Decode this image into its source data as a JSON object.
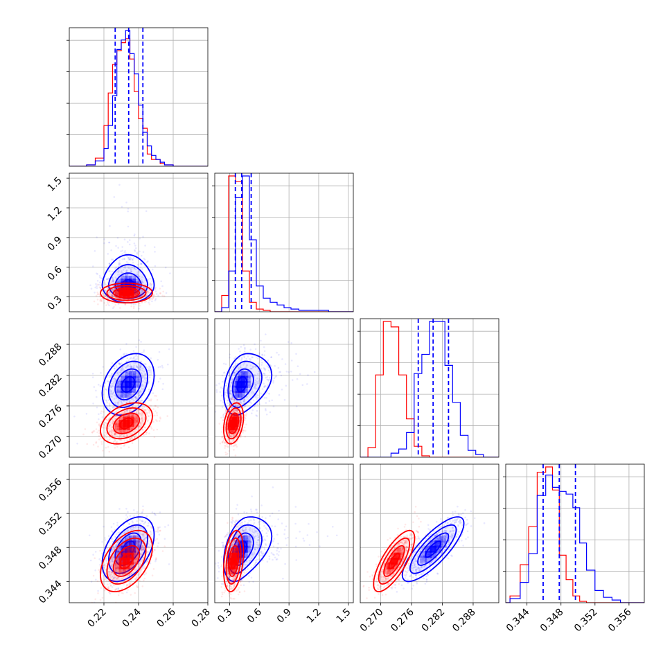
{
  "chart_data": {
    "type": "corner",
    "grid": true,
    "colors": {
      "blue": "#0000ff",
      "red": "#ff0000"
    },
    "parameters": [
      {
        "range": [
          0.2,
          0.28
        ],
        "ticks": [
          0.22,
          0.24,
          0.26,
          0.28
        ],
        "tick_labels": [
          "0.22",
          "0.24",
          "0.26",
          "0.28"
        ]
      },
      {
        "range": [
          0.15,
          1.55
        ],
        "ticks": [
          0.3,
          0.6,
          0.9,
          1.2,
          1.5
        ],
        "tick_labels": [
          "0.3",
          "0.6",
          "0.9",
          "1.2",
          "1.5"
        ]
      },
      {
        "range": [
          0.266,
          0.293
        ],
        "ticks": [
          0.27,
          0.276,
          0.282,
          0.288
        ],
        "tick_labels": [
          "0.270",
          "0.276",
          "0.282",
          "0.288"
        ]
      },
      {
        "range": [
          0.3415,
          0.3578
        ],
        "ticks": [
          0.344,
          0.348,
          0.352,
          0.356
        ],
        "tick_labels": [
          "0.344",
          "0.348",
          "0.352",
          "0.356"
        ]
      }
    ],
    "series": [
      {
        "color": "#0000ff",
        "mean": [
          0.234,
          0.42,
          0.2802,
          0.3478
        ],
        "sd": [
          0.0075,
          0.09,
          0.003,
          0.0019
        ],
        "skew_up": [
          0,
          1,
          0,
          0
        ],
        "quantiles": [
          [
            0.2265,
            0.2343,
            0.2425
          ],
          [
            0.358,
            0.422,
            0.518
          ],
          [
            0.2773,
            0.2802,
            0.2832
          ],
          [
            0.3459,
            0.3478,
            0.3497
          ]
        ]
      },
      {
        "color": "#ff0000",
        "mean": [
          0.233,
          0.34,
          0.2726,
          0.3464
        ],
        "sd": [
          0.0075,
          0.05,
          0.002,
          0.0018
        ],
        "skew_up": [
          0,
          0,
          0,
          0
        ],
        "quantiles": []
      }
    ],
    "correlations": {
      "0-1": [
        0.0,
        0.0
      ],
      "0-2": [
        0.3,
        0.35
      ],
      "0-3": [
        0.45,
        0.45
      ],
      "1-2": [
        0.3,
        0.3
      ],
      "1-3": [
        0.4,
        0.3
      ],
      "2-3": [
        0.8,
        0.75
      ]
    },
    "histograms": {
      "0": {
        "bins": [
          0.2,
          0.21,
          0.215,
          0.22,
          0.2225,
          0.225,
          0.2275,
          0.23,
          0.2325,
          0.235,
          0.2375,
          0.24,
          0.2425,
          0.245,
          0.2475,
          0.25,
          0.2525,
          0.255,
          0.26,
          0.265,
          0.28
        ],
        "blue": [
          0,
          1,
          4,
          13,
          30,
          52,
          86,
          93,
          100,
          83,
          68,
          45,
          25,
          15,
          8,
          5,
          3,
          1,
          0,
          0
        ],
        "red": [
          0,
          1,
          6,
          30,
          54,
          75,
          85,
          91,
          94,
          79,
          55,
          35,
          28,
          9,
          5,
          5,
          2,
          1,
          0,
          0
        ]
      },
      "1": {
        "bins": [
          0.15,
          0.22,
          0.29,
          0.36,
          0.43,
          0.5,
          0.57,
          0.64,
          0.71,
          0.78,
          0.85,
          0.92,
          1.0,
          1.1,
          1.3,
          1.55
        ],
        "blue": [
          0,
          3,
          30,
          84,
          100,
          53,
          19,
          10,
          7,
          5,
          3,
          2,
          1,
          1,
          0
        ],
        "red": [
          0,
          12,
          100,
          96,
          30,
          7,
          2,
          1,
          0,
          0,
          0,
          0,
          0,
          0,
          0
        ]
      },
      "2": {
        "bins": [
          0.266,
          0.2675,
          0.269,
          0.2705,
          0.272,
          0.2735,
          0.275,
          0.2765,
          0.278,
          0.2795,
          0.281,
          0.2825,
          0.284,
          0.2855,
          0.287,
          0.2885,
          0.29,
          0.293
        ],
        "blue": [
          0,
          0,
          0,
          0,
          3,
          6,
          18,
          61,
          75,
          99,
          99,
          67,
          40,
          16,
          5,
          2,
          0
        ],
        "red": [
          0,
          7,
          60,
          99,
          95,
          60,
          28,
          8,
          1,
          0,
          0,
          0,
          0,
          0,
          0,
          0,
          0
        ]
      },
      "3": {
        "bins": [
          0.3415,
          0.342,
          0.3432,
          0.3442,
          0.3452,
          0.3462,
          0.347,
          0.3478,
          0.3486,
          0.3494,
          0.3502,
          0.351,
          0.352,
          0.353,
          0.354,
          0.355,
          0.3565,
          0.3578
        ],
        "blue": [
          0,
          3,
          15,
          36,
          79,
          94,
          85,
          82,
          80,
          70,
          44,
          24,
          9,
          4,
          2,
          0,
          0
        ],
        "red": [
          0,
          5,
          28,
          56,
          96,
          100,
          83,
          35,
          17,
          5,
          1,
          0,
          0,
          0,
          0,
          0,
          0
        ]
      }
    }
  }
}
